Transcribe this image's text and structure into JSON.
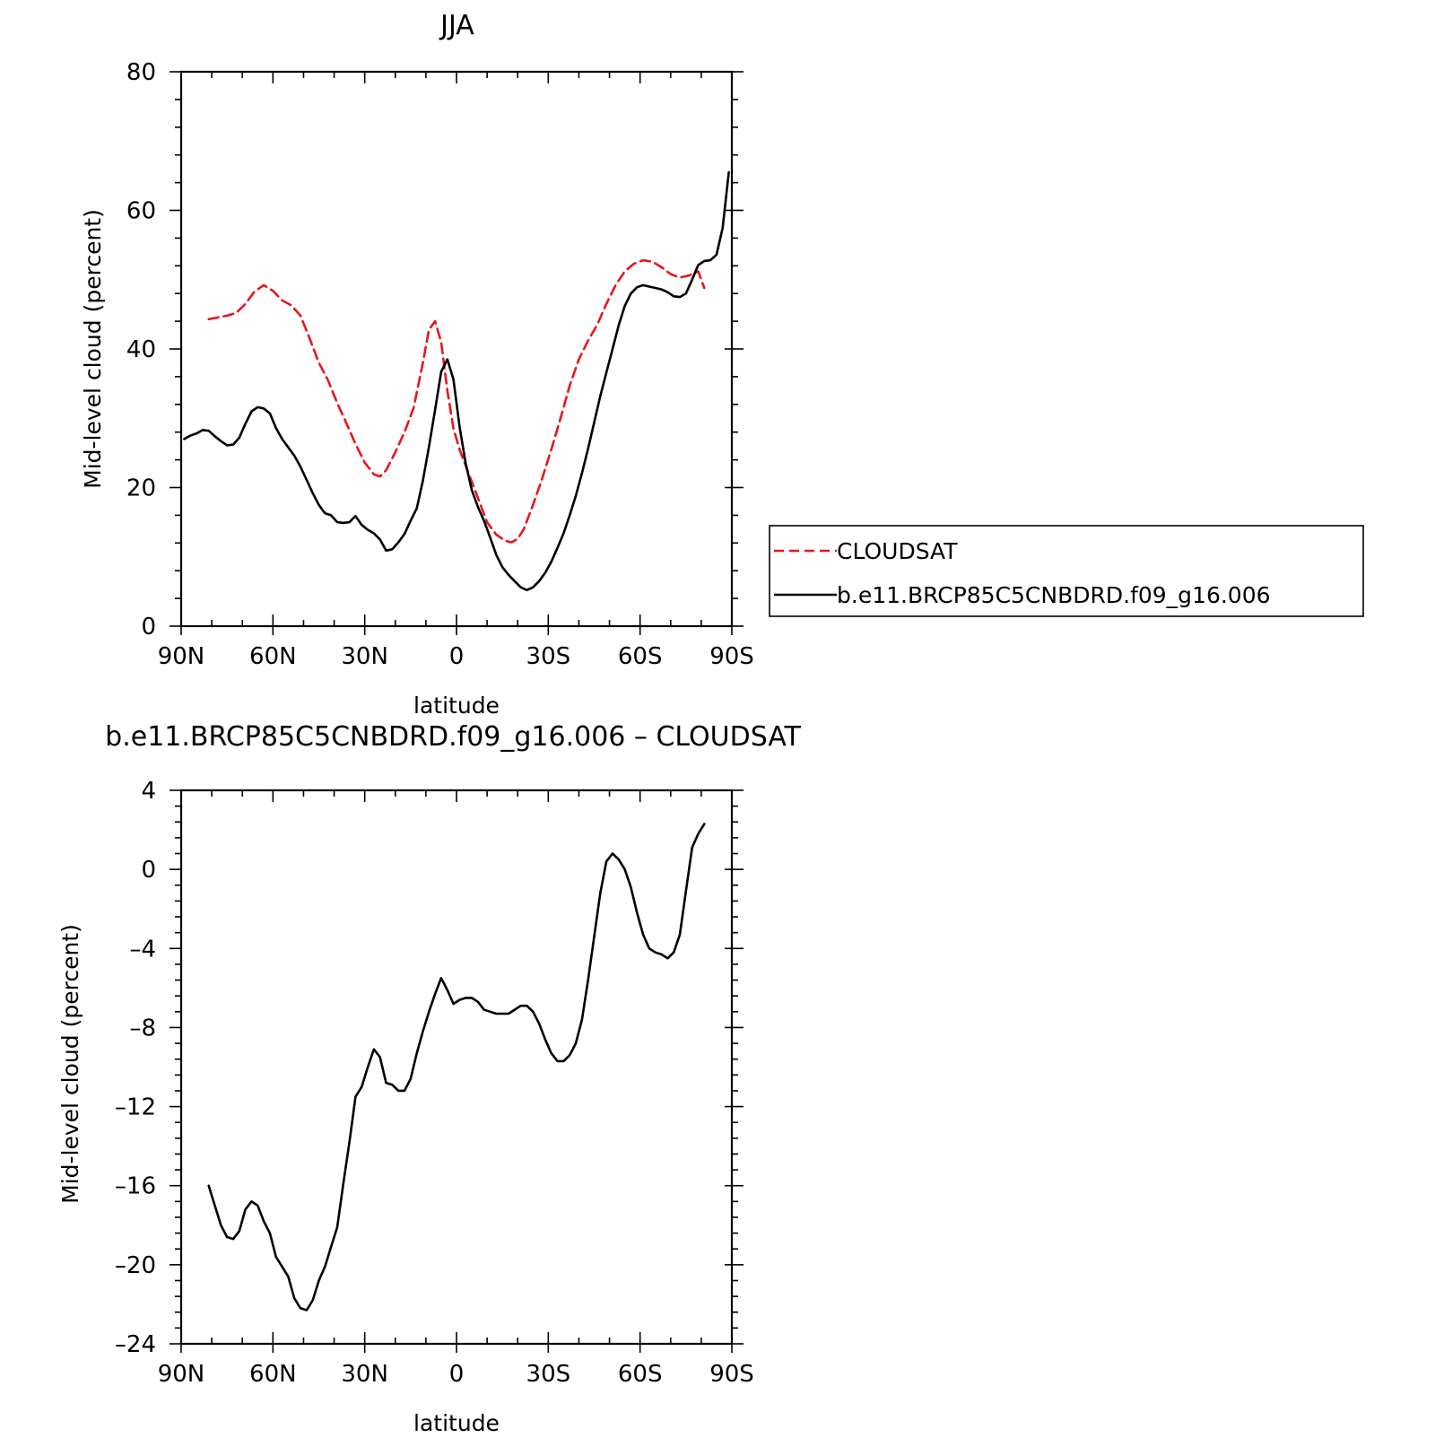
{
  "chart_data": [
    {
      "type": "line",
      "title": "JJA",
      "xlabel": "latitude",
      "ylabel": "Mid-level cloud (percent)",
      "xlim": [
        -90,
        90
      ],
      "ylim": [
        0,
        80
      ],
      "x_ticks": [
        -90,
        -60,
        -30,
        0,
        30,
        60,
        90
      ],
      "x_tick_labels": [
        "90N",
        "60N",
        "30N",
        "0",
        "30S",
        "60S",
        "90S"
      ],
      "y_ticks": [
        0,
        20,
        40,
        60,
        80
      ],
      "y_tick_labels": [
        "0",
        "20",
        "40",
        "60",
        "80"
      ],
      "legend_position": "right",
      "series": [
        {
          "name": "CLOUDSAT",
          "color": "#e8161d",
          "dash": "dashed",
          "x": [
            -81,
            -75,
            -72,
            -69,
            -66,
            -63,
            -60,
            -57,
            -54,
            -51,
            -48,
            -45,
            -42,
            -39,
            -36,
            -33,
            -30,
            -27,
            -25,
            -23,
            -20,
            -17,
            -14,
            -11,
            -9,
            -7,
            -5,
            -3,
            -1,
            1,
            4,
            7,
            10,
            13,
            16,
            18,
            20,
            22,
            25,
            28,
            31,
            34,
            37,
            40,
            43,
            46,
            49,
            52,
            55,
            58,
            61,
            64,
            67,
            70,
            73,
            76,
            79,
            81
          ],
          "y": [
            44.3,
            44.8,
            45.2,
            46.5,
            48.3,
            49.2,
            48.4,
            47.0,
            46.3,
            44.8,
            41.5,
            38.0,
            35.5,
            32.2,
            29.3,
            26.3,
            23.6,
            21.9,
            21.6,
            22.5,
            25.1,
            28.0,
            31.5,
            38.0,
            42.8,
            44.0,
            41.0,
            34.0,
            28.5,
            25.5,
            22.0,
            18.5,
            15.0,
            13.2,
            12.3,
            12.1,
            12.6,
            14.0,
            17.5,
            21.3,
            25.5,
            30.0,
            34.7,
            38.5,
            41.2,
            43.5,
            46.5,
            49.2,
            51.2,
            52.3,
            52.8,
            52.6,
            51.8,
            50.8,
            50.3,
            50.6,
            51.2,
            48.8
          ]
        },
        {
          "name": "b.e11.BRCP85C5CNBDRD.f09_g16.006",
          "color": "#000000",
          "dash": "solid",
          "x": [
            -89,
            -87,
            -85,
            -83,
            -81,
            -79,
            -77,
            -75,
            -73,
            -71,
            -69,
            -67,
            -65,
            -63,
            -61,
            -59,
            -57,
            -55,
            -53,
            -51,
            -49,
            -47,
            -45,
            -43,
            -41,
            -39,
            -37,
            -35,
            -33,
            -31,
            -29,
            -27,
            -25,
            -23,
            -21,
            -19,
            -17,
            -15,
            -13,
            -11,
            -9,
            -7,
            -5,
            -3,
            -1,
            1,
            3,
            5,
            7,
            9,
            11,
            13,
            15,
            17,
            19,
            21,
            23,
            25,
            27,
            29,
            31,
            33,
            35,
            37,
            39,
            41,
            43,
            45,
            47,
            49,
            51,
            53,
            55,
            57,
            59,
            61,
            63,
            65,
            67,
            69,
            71,
            73,
            75,
            77,
            79,
            81,
            83,
            85,
            87,
            89
          ],
          "y": [
            27.0,
            27.5,
            27.8,
            28.3,
            28.2,
            27.4,
            26.7,
            26.1,
            26.2,
            27.2,
            29.2,
            31.0,
            31.6,
            31.4,
            30.7,
            28.6,
            27.0,
            25.8,
            24.6,
            23.0,
            21.1,
            19.2,
            17.5,
            16.3,
            16.0,
            15.0,
            14.9,
            15.0,
            15.9,
            14.6,
            13.9,
            13.4,
            12.5,
            10.9,
            11.1,
            12.1,
            13.3,
            15.2,
            17.0,
            21.0,
            25.9,
            31.2,
            36.7,
            38.5,
            35.6,
            28.8,
            23.5,
            19.6,
            17.2,
            15.2,
            12.8,
            10.3,
            8.5,
            7.4,
            6.5,
            5.6,
            5.2,
            5.6,
            6.5,
            7.7,
            9.3,
            11.3,
            13.4,
            16.0,
            18.8,
            22.1,
            25.6,
            29.4,
            33.2,
            36.6,
            40.0,
            43.4,
            46.2,
            48.0,
            48.9,
            49.2,
            49.0,
            48.8,
            48.6,
            48.2,
            47.6,
            47.5,
            48.0,
            50.0,
            52.1,
            52.7,
            52.8,
            53.6,
            57.5,
            65.5
          ]
        }
      ]
    },
    {
      "type": "line",
      "title": "b.e11.BRCP85C5CNBDRD.f09_g16.006 – CLOUDSAT",
      "xlabel": "latitude",
      "ylabel": "Mid-level cloud (percent)",
      "xlim": [
        -90,
        90
      ],
      "ylim": [
        -24,
        4
      ],
      "x_ticks": [
        -90,
        -60,
        -30,
        0,
        30,
        60,
        90
      ],
      "x_tick_labels": [
        "90N",
        "60N",
        "30N",
        "0",
        "30S",
        "60S",
        "90S"
      ],
      "y_ticks": [
        -24,
        -20,
        -16,
        -12,
        -8,
        -4,
        0,
        4
      ],
      "y_tick_labels": [
        "–24",
        "–20",
        "–16",
        "–12",
        "–8",
        "–4",
        "0",
        "4"
      ],
      "series": [
        {
          "color": "#000000",
          "dash": "solid",
          "x": [
            -81,
            -79,
            -77,
            -75,
            -73,
            -71,
            -69,
            -67,
            -65,
            -63,
            -61,
            -59,
            -57,
            -55,
            -53,
            -51,
            -49,
            -47,
            -45,
            -43,
            -41,
            -39,
            -37,
            -35,
            -33,
            -31,
            -29,
            -27,
            -25,
            -23,
            -21,
            -19,
            -17,
            -15,
            -13,
            -11,
            -9,
            -7,
            -5,
            -3,
            -1,
            1,
            3,
            5,
            7,
            9,
            11,
            13,
            15,
            17,
            19,
            21,
            23,
            25,
            27,
            29,
            31,
            33,
            35,
            37,
            39,
            41,
            43,
            45,
            47,
            49,
            51,
            53,
            55,
            57,
            59,
            61,
            63,
            65,
            67,
            69,
            71,
            73,
            75,
            77,
            79,
            81
          ],
          "y": [
            -16.0,
            -17.0,
            -18.0,
            -18.6,
            -18.7,
            -18.3,
            -17.2,
            -16.8,
            -17.0,
            -17.8,
            -18.4,
            -19.6,
            -20.1,
            -20.6,
            -21.7,
            -22.2,
            -22.3,
            -21.8,
            -20.8,
            -20.1,
            -19.1,
            -18.1,
            -15.9,
            -13.8,
            -11.5,
            -11.0,
            -10.0,
            -9.1,
            -9.5,
            -10.8,
            -10.9,
            -11.2,
            -11.2,
            -10.6,
            -9.3,
            -8.2,
            -7.2,
            -6.3,
            -5.5,
            -6.1,
            -6.8,
            -6.6,
            -6.5,
            -6.5,
            -6.7,
            -7.1,
            -7.2,
            -7.3,
            -7.3,
            -7.3,
            -7.1,
            -6.9,
            -6.9,
            -7.2,
            -7.8,
            -8.6,
            -9.3,
            -9.7,
            -9.7,
            -9.4,
            -8.8,
            -7.6,
            -5.6,
            -3.4,
            -1.2,
            0.4,
            0.8,
            0.5,
            0.0,
            -0.9,
            -2.2,
            -3.3,
            -4.0,
            -4.2,
            -4.3,
            -4.5,
            -4.2,
            -3.3,
            -1.1,
            1.1,
            1.8,
            2.3
          ]
        }
      ]
    }
  ]
}
